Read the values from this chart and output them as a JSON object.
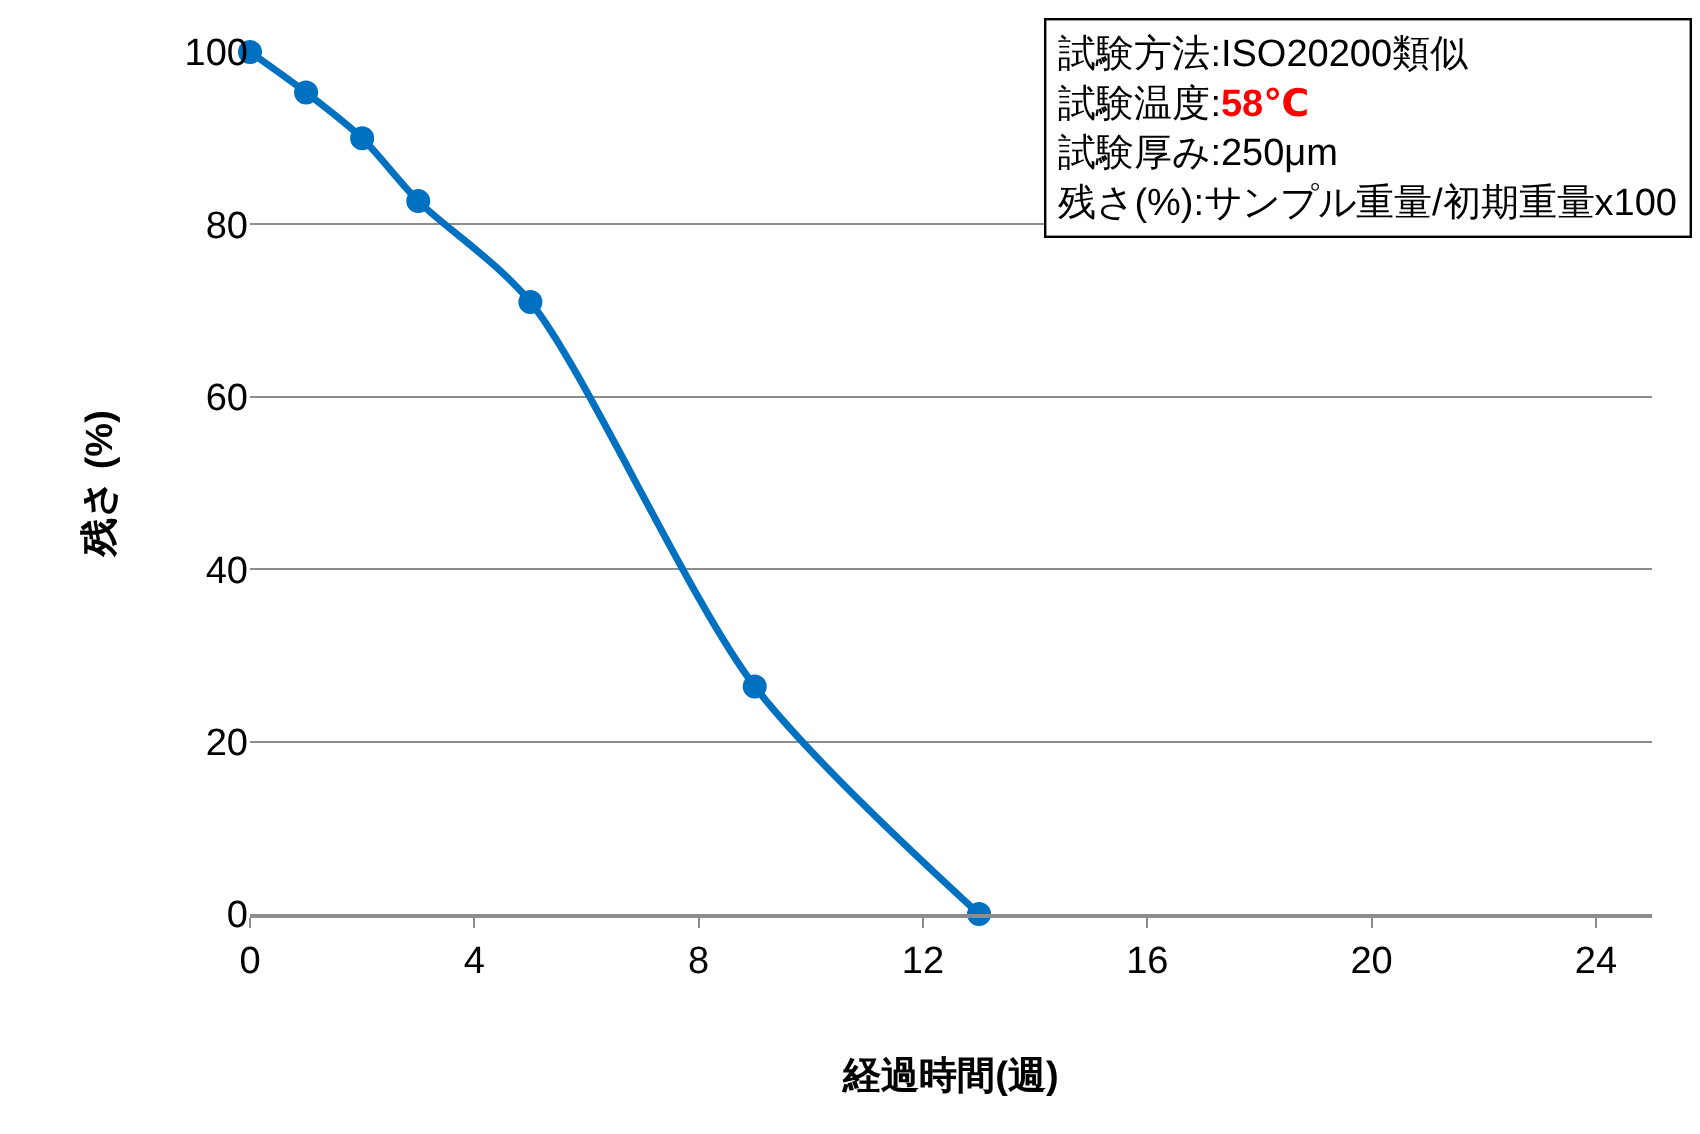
{
  "chart_data": {
    "type": "line",
    "xlabel": "経過時間(週)",
    "ylabel": "残さ (%)",
    "x": [
      0,
      1,
      2,
      3,
      5,
      9,
      13
    ],
    "series": [
      {
        "color": "#0070c0",
        "values": [
          100,
          95.3,
          90,
          82.7,
          71,
          26.4,
          0
        ]
      }
    ],
    "xlim": [
      0,
      25
    ],
    "xticks": [
      0,
      4,
      8,
      12,
      16,
      20,
      24
    ],
    "ylim": [
      0,
      100
    ],
    "yticks": [
      0,
      20,
      40,
      60,
      80,
      100
    ],
    "grid": "y",
    "marker": "circle",
    "line_style": "solid",
    "annotations": [
      "試験方法:ISO20200類似",
      "試験温度:58℃",
      "試験厚み:250μm",
      "残さ(%):サンプル重量/初期重量x100"
    ]
  }
}
